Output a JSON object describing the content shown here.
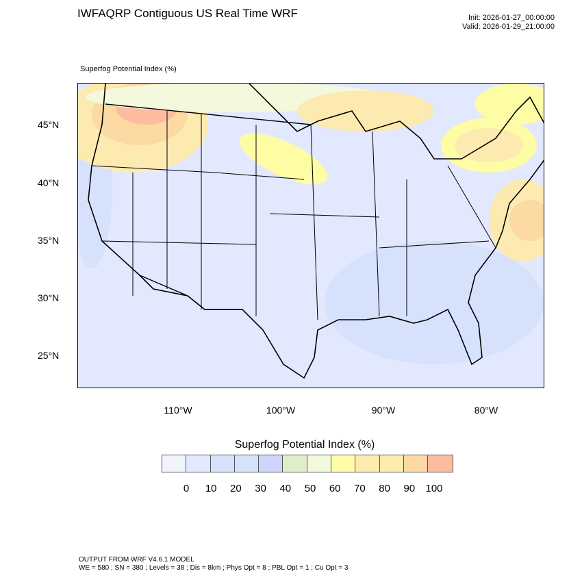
{
  "title": "IWFAQRP Contiguous US Real Time WRF",
  "init": "Init: 2026-01-27_00:00:00",
  "valid": "Valid: 2026-01-29_21:00:00",
  "field_label": "Superfog Potential Index   (%)",
  "lat_labels": [
    "45°N",
    "40°N",
    "35°N",
    "30°N",
    "25°N"
  ],
  "lon_labels": [
    "110°W",
    "100°W",
    "90°W",
    "80°W"
  ],
  "colorbar": {
    "title": "Superfog Potential Index  (%)",
    "colors": [
      "#f0f3f9",
      "#e2e8fd",
      "#d6e1fc",
      "#d6e1fc",
      "#ccd5fb",
      "#e0eec8",
      "#f4f9dd",
      "#fefca4",
      "#fdeab0",
      "#fdebb0",
      "#fdd9a3",
      "#fdbca0"
    ],
    "labels": [
      "0",
      "10",
      "20",
      "30",
      "40",
      "50",
      "60",
      "70",
      "80",
      "90",
      "100"
    ]
  },
  "footer": {
    "line1": "OUTPUT FROM WRF V4.6.1 MODEL",
    "line2": "WE = 580 ; SN = 380 ; Levels = 38 ; Dis = 8km ; Phys Opt = 8 ; PBL Opt = 1 ; Cu Opt = 3"
  }
}
